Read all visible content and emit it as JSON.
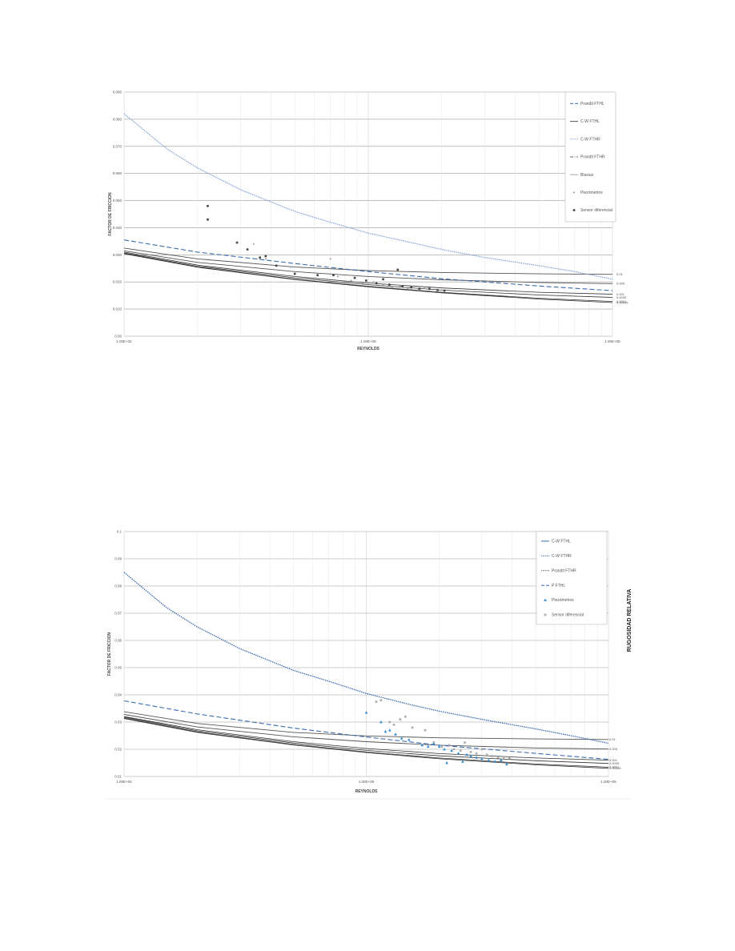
{
  "chart_data": [
    {
      "type": "line",
      "xscale": "log",
      "xlim": [
        10000,
        1000000
      ],
      "ylim": [
        0,
        0.09
      ],
      "xlabel": "REYNOLDS",
      "ylabel": "FACTOR DE FRICCION",
      "x_ticks": [
        "1.00E+04",
        "1.00E+05",
        "1.00E+06"
      ],
      "y_ticks": [
        {
          "v": 0.0,
          "label": "0.00"
        },
        {
          "v": 0.01,
          "label": "0.010"
        },
        {
          "v": 0.02,
          "label": "0.020"
        },
        {
          "v": 0.03,
          "label": "0.030"
        },
        {
          "v": 0.04,
          "label": "0.040"
        },
        {
          "v": 0.05,
          "label": "0.050"
        },
        {
          "v": 0.06,
          "label": "0.060"
        },
        {
          "v": 0.07,
          "label": "0.070"
        },
        {
          "v": 0.08,
          "label": "0.080"
        },
        {
          "v": 0.09,
          "label": "0.090"
        }
      ],
      "grid": true,
      "legend_position": "top-right",
      "legend": [
        {
          "label": "Prandtl FTHL",
          "style": "dash",
          "color": "#3e6bb0"
        },
        {
          "label": "C-W FTHL",
          "style": "solid",
          "color": "#555555"
        },
        {
          "label": "C-W FTHR",
          "style": "dot",
          "color": "#8aa6d6"
        },
        {
          "label": "Prandtl FTHR",
          "style": "dashdot",
          "color": "#666666"
        },
        {
          "label": "Blasius",
          "style": "solid",
          "color": "#aaaaaa"
        },
        {
          "label": "Piezómetros",
          "style": "marker-dot",
          "color": "#999999"
        },
        {
          "label": "Sensor diferencial",
          "style": "marker-square",
          "color": "#444444"
        }
      ],
      "upper_curve": {
        "x": [
          10000,
          15000,
          20000,
          30000,
          50000,
          70000,
          100000,
          150000,
          200000,
          300000,
          500000,
          700000,
          1000000
        ],
        "y": [
          0.082,
          0.069,
          0.062,
          0.054,
          0.046,
          0.042,
          0.038,
          0.0345,
          0.032,
          0.029,
          0.026,
          0.0238,
          0.021
        ]
      },
      "dashed_curve": {
        "x": [
          10000,
          20000,
          50000,
          100000,
          200000,
          500000,
          1000000
        ],
        "y": [
          0.0355,
          0.031,
          0.0268,
          0.0238,
          0.0212,
          0.0185,
          0.0168
        ]
      },
      "relative_roughness_curves": [
        {
          "label": "0.01",
          "y": [
            0.0325,
            0.0285,
            0.0255,
            0.0242,
            0.0235,
            0.023,
            0.0228
          ]
        },
        {
          "label": "0.005",
          "y": [
            0.0315,
            0.0272,
            0.0238,
            0.022,
            0.0208,
            0.0198,
            0.0194
          ]
        },
        {
          "label": "0.001",
          "y": [
            0.031,
            0.0262,
            0.022,
            0.0196,
            0.0178,
            0.0162,
            0.0155
          ]
        },
        {
          "label": "0.0005",
          "y": [
            0.0307,
            0.0258,
            0.0215,
            0.019,
            0.017,
            0.0152,
            0.0143
          ]
        },
        {
          "label": "0.0001",
          "y": [
            0.0305,
            0.0255,
            0.021,
            0.0184,
            0.0162,
            0.014,
            0.0128
          ]
        },
        {
          "label": "0.00005",
          "y": [
            0.0304,
            0.0254,
            0.0209,
            0.0182,
            0.016,
            0.0137,
            0.0124
          ]
        }
      ],
      "rr_x": [
        10000,
        20000,
        50000,
        100000,
        200000,
        500000,
        1000000
      ],
      "piezometros": [
        [
          34000,
          0.034
        ],
        [
          38000,
          0.0285
        ],
        [
          48000,
          0.0255
        ],
        [
          55000,
          0.0235
        ],
        [
          63000,
          0.021
        ],
        [
          70000,
          0.0285
        ],
        [
          75000,
          0.022
        ],
        [
          85000,
          0.0205
        ],
        [
          95000,
          0.0195
        ],
        [
          105000,
          0.02
        ],
        [
          115000,
          0.019
        ],
        [
          125000,
          0.018
        ],
        [
          135000,
          0.0185
        ],
        [
          145000,
          0.0175
        ],
        [
          160000,
          0.017
        ],
        [
          170000,
          0.018
        ],
        [
          185000,
          0.0165
        ],
        [
          200000,
          0.017
        ]
      ],
      "sensor_diferencial": [
        [
          22000,
          0.048
        ],
        [
          22000,
          0.043
        ],
        [
          29000,
          0.0345
        ],
        [
          32000,
          0.032
        ],
        [
          36000,
          0.029
        ],
        [
          38000,
          0.0295
        ],
        [
          42000,
          0.026
        ],
        [
          50000,
          0.023
        ],
        [
          62000,
          0.0225
        ],
        [
          72000,
          0.0225
        ],
        [
          88000,
          0.0215
        ],
        [
          98000,
          0.0205
        ],
        [
          108000,
          0.0195
        ],
        [
          115000,
          0.021
        ],
        [
          122000,
          0.019
        ],
        [
          132000,
          0.0245
        ],
        [
          138000,
          0.0185
        ],
        [
          150000,
          0.018
        ],
        [
          162000,
          0.0175
        ],
        [
          178000,
          0.0175
        ],
        [
          192000,
          0.017
        ],
        [
          205000,
          0.0168
        ]
      ]
    },
    {
      "type": "line",
      "xscale": "log",
      "xlim": [
        10000,
        1000000
      ],
      "ylim": [
        0.01,
        0.1
      ],
      "xlabel": "REYNOLDS",
      "ylabel": "FACTOR DE FRICCION",
      "side_title": "RUGOSIDAD RELATIVA",
      "x_ticks": [
        "1.00E+04",
        "1.00E+05",
        "1.00E+06"
      ],
      "y_ticks": [
        {
          "v": 0.01,
          "label": "0.01"
        },
        {
          "v": 0.02,
          "label": "0.02"
        },
        {
          "v": 0.03,
          "label": "0.03"
        },
        {
          "v": 0.04,
          "label": "0.04"
        },
        {
          "v": 0.05,
          "label": "0.05"
        },
        {
          "v": 0.06,
          "label": "0.06"
        },
        {
          "v": 0.07,
          "label": "0.07"
        },
        {
          "v": 0.08,
          "label": "0.08"
        },
        {
          "v": 0.09,
          "label": "0.09"
        },
        {
          "v": 0.1,
          "label": "0.1"
        }
      ],
      "grid": true,
      "legend_position": "top-right",
      "legend": [
        {
          "label": "C-W FTHL",
          "style": "solid",
          "color": "#3e6bb0"
        },
        {
          "label": "C-W FTHR",
          "style": "dot",
          "color": "#3e6bb0"
        },
        {
          "label": "Prandtl FTHR",
          "style": "dot",
          "color": "#555555"
        },
        {
          "label": "P FTHL",
          "style": "dash",
          "color": "#3e6bb0"
        },
        {
          "label": "Piezómetros",
          "style": "marker-triangle",
          "color": "#2e8bd0"
        },
        {
          "label": "Sensor diferencial",
          "style": "marker-square",
          "color": "#aaaaaa"
        }
      ],
      "upper_curve": {
        "x": [
          10000,
          15000,
          20000,
          30000,
          50000,
          70000,
          100000,
          150000,
          200000,
          300000,
          500000,
          700000,
          1000000
        ],
        "y": [
          0.085,
          0.072,
          0.065,
          0.057,
          0.049,
          0.045,
          0.0405,
          0.0365,
          0.034,
          0.031,
          0.0275,
          0.025,
          0.0222
        ]
      },
      "dashed_curve": {
        "x": [
          10000,
          20000,
          50000,
          100000,
          200000,
          500000,
          1000000
        ],
        "y": [
          0.0378,
          0.033,
          0.0278,
          0.0245,
          0.0215,
          0.0185,
          0.0163
        ]
      },
      "relative_roughness_curves": [
        {
          "label": "0.01",
          "y": [
            0.0338,
            0.0295,
            0.0262,
            0.0249,
            0.0242,
            0.0238,
            0.0236
          ]
        },
        {
          "label": "0.005",
          "y": [
            0.0328,
            0.0282,
            0.0246,
            0.0228,
            0.0215,
            0.0205,
            0.0201
          ]
        },
        {
          "label": "0.001",
          "y": [
            0.032,
            0.0272,
            0.0228,
            0.0203,
            0.0184,
            0.0168,
            0.016
          ]
        },
        {
          "label": "0.0005",
          "y": [
            0.0318,
            0.0268,
            0.0223,
            0.0196,
            0.0176,
            0.0158,
            0.0148
          ]
        },
        {
          "label": "0.0001",
          "y": [
            0.0315,
            0.0264,
            0.0218,
            0.019,
            0.0168,
            0.0146,
            0.0134
          ]
        },
        {
          "label": "0.00005",
          "y": [
            0.0313,
            0.0262,
            0.0216,
            0.0188,
            0.0165,
            0.0143,
            0.013
          ]
        }
      ],
      "rr_x": [
        10000,
        20000,
        50000,
        100000,
        200000,
        500000,
        1000000
      ],
      "piezometros": [
        [
          100000,
          0.0335
        ],
        [
          115000,
          0.03
        ],
        [
          120000,
          0.0265
        ],
        [
          125000,
          0.027
        ],
        [
          132000,
          0.0255
        ],
        [
          140000,
          0.024
        ],
        [
          150000,
          0.0235
        ],
        [
          170000,
          0.0215
        ],
        [
          180000,
          0.021
        ],
        [
          190000,
          0.022
        ],
        [
          200000,
          0.021
        ],
        [
          210000,
          0.02
        ],
        [
          215000,
          0.015
        ],
        [
          225000,
          0.0195
        ],
        [
          240000,
          0.0185
        ],
        [
          250000,
          0.0155
        ],
        [
          260000,
          0.018
        ],
        [
          270000,
          0.0175
        ],
        [
          285000,
          0.017
        ],
        [
          300000,
          0.0165
        ],
        [
          320000,
          0.016
        ],
        [
          340000,
          0.0155
        ],
        [
          360000,
          0.016
        ],
        [
          380000,
          0.0145
        ]
      ],
      "sensor_diferencial": [
        [
          110000,
          0.0375
        ],
        [
          115000,
          0.038
        ],
        [
          125000,
          0.03
        ],
        [
          130000,
          0.029
        ],
        [
          138000,
          0.031
        ],
        [
          145000,
          0.032
        ],
        [
          155000,
          0.028
        ],
        [
          175000,
          0.027
        ],
        [
          190000,
          0.0225
        ],
        [
          205000,
          0.021
        ],
        [
          220000,
          0.0215
        ],
        [
          230000,
          0.02
        ],
        [
          245000,
          0.0195
        ],
        [
          255000,
          0.0225
        ],
        [
          270000,
          0.019
        ],
        [
          285000,
          0.0185
        ],
        [
          300000,
          0.02
        ],
        [
          315000,
          0.018
        ],
        [
          330000,
          0.0175
        ],
        [
          350000,
          0.017
        ],
        [
          370000,
          0.017
        ],
        [
          390000,
          0.0168
        ]
      ]
    }
  ]
}
